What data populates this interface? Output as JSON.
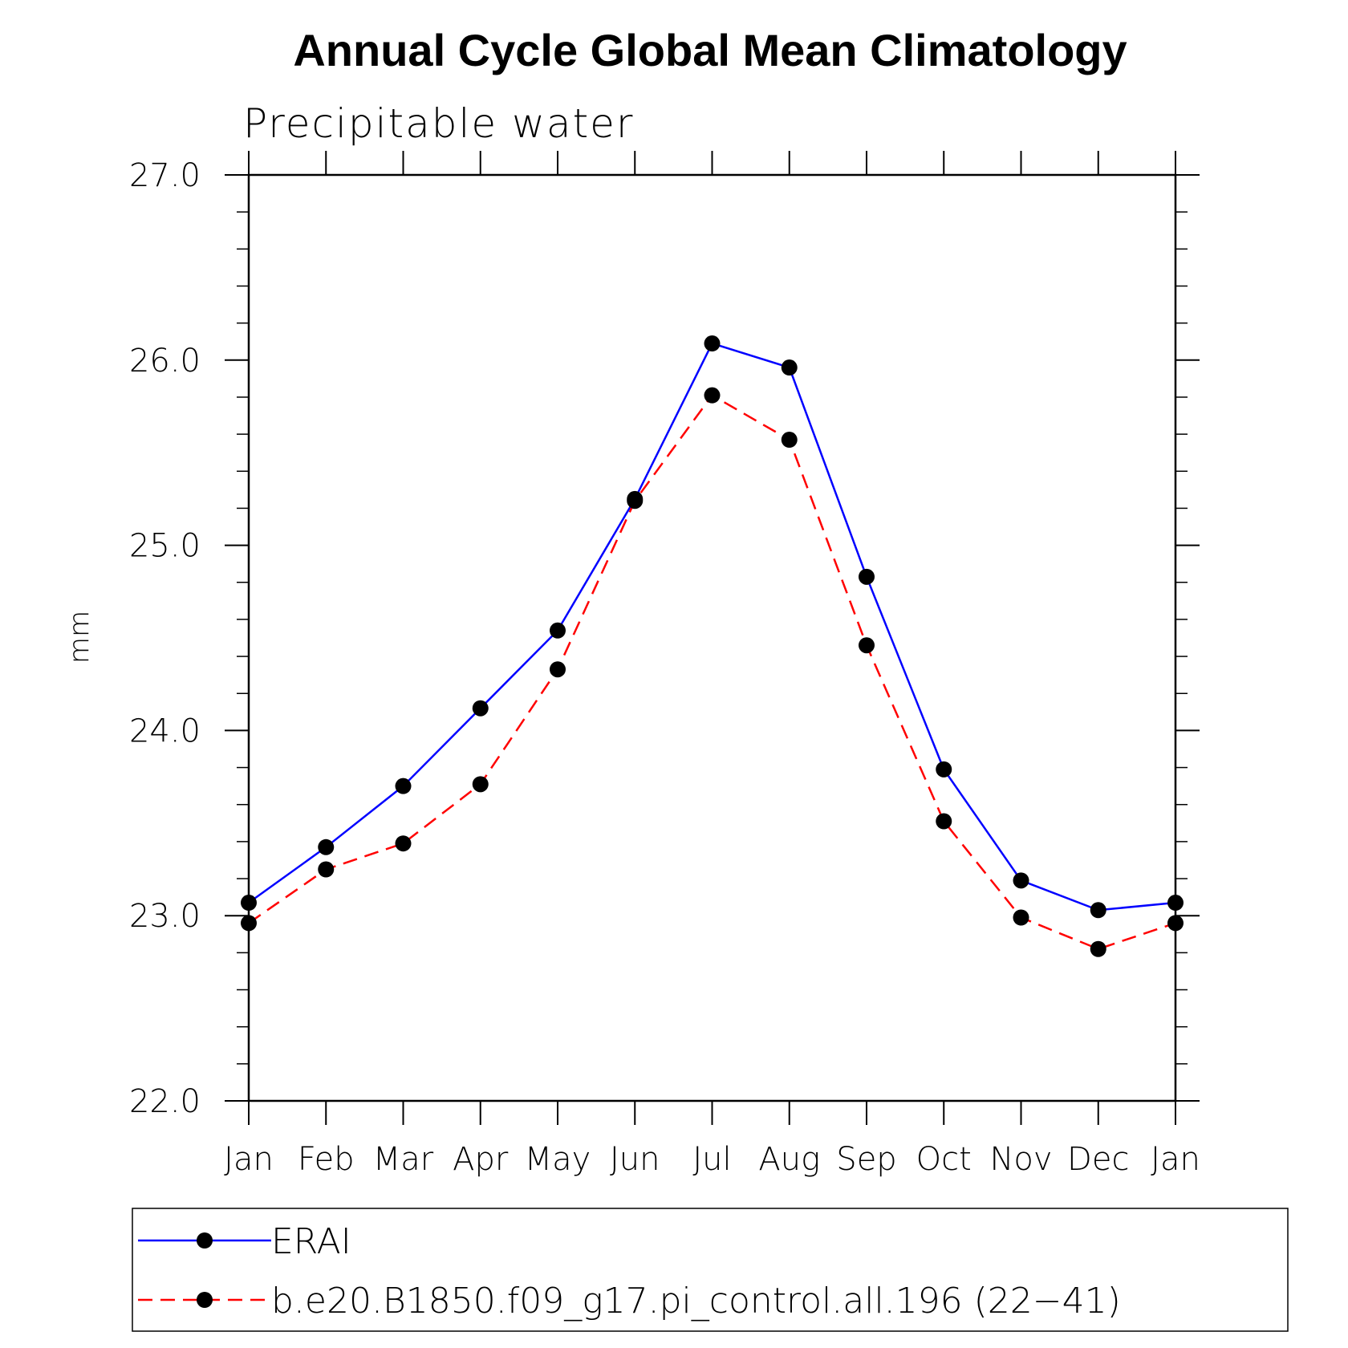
{
  "chart_data": {
    "type": "line",
    "title": "Annual Cycle Global Mean Climatology",
    "subtitle": "Precipitable water",
    "ylabel": "mm",
    "xlabel": "",
    "categories": [
      "Jan",
      "Feb",
      "Mar",
      "Apr",
      "May",
      "Jun",
      "Jul",
      "Aug",
      "Sep",
      "Oct",
      "Nov",
      "Dec",
      "Jan"
    ],
    "ylim": [
      22.0,
      27.0
    ],
    "yticks": [
      "22.0",
      "23.0",
      "24.0",
      "25.0",
      "26.0",
      "27.0"
    ],
    "grid": false,
    "legend_position": "bottom",
    "series": [
      {
        "name": "ERAI",
        "color": "#0000ff",
        "style": "solid",
        "marker": "circle",
        "values": [
          23.07,
          23.37,
          23.7,
          24.12,
          24.54,
          25.25,
          26.09,
          25.96,
          24.83,
          23.79,
          23.19,
          23.03,
          23.07
        ]
      },
      {
        "name": "b.e20.B1850.f09_g17.pi_control.all.196 (22−41)",
        "color": "#ff0000",
        "style": "dashed",
        "marker": "circle",
        "values": [
          22.96,
          23.25,
          23.39,
          23.71,
          24.33,
          25.24,
          25.81,
          25.57,
          24.46,
          23.51,
          22.99,
          22.82,
          22.96
        ]
      }
    ]
  }
}
